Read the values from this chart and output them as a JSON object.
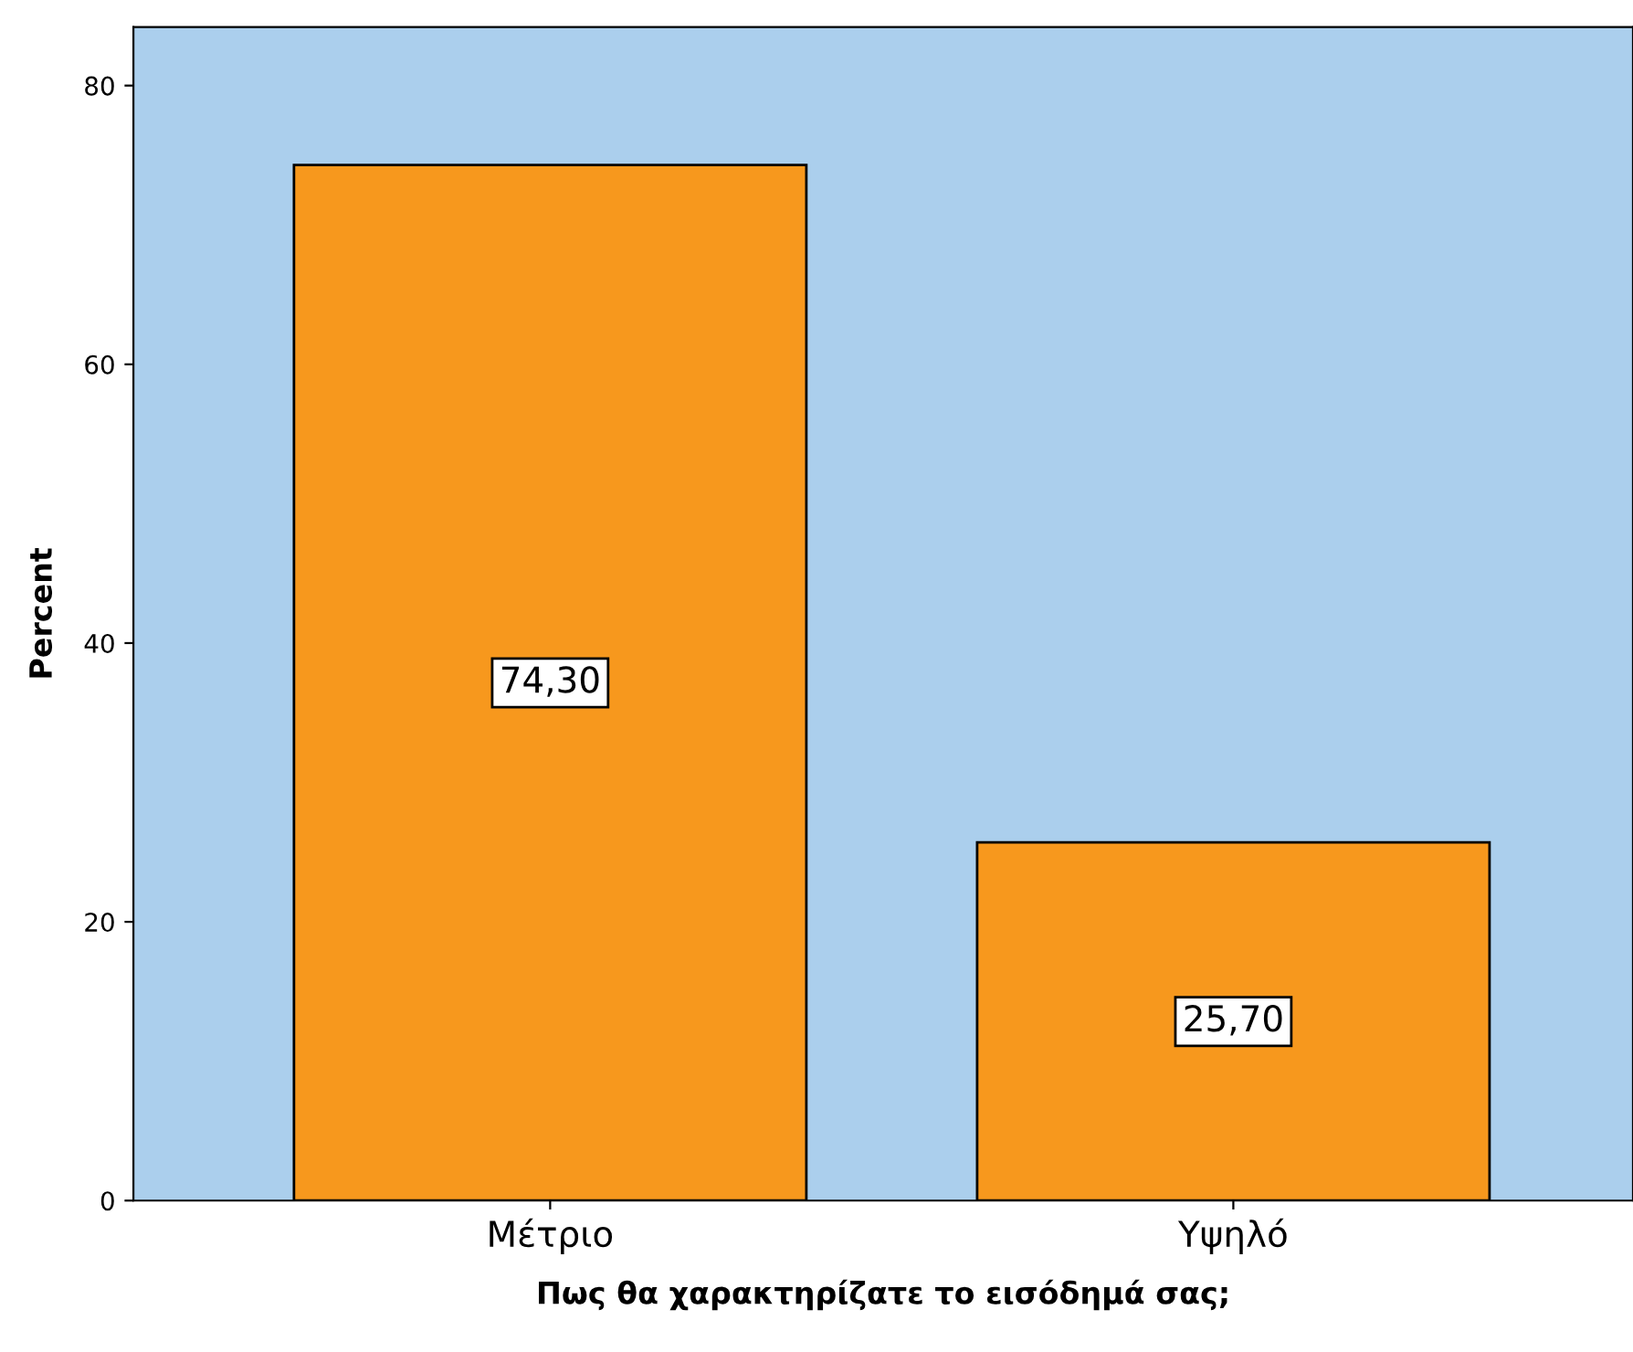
{
  "chart_data": {
    "type": "bar",
    "xlabel": "Πως θα χαρακτηρίζατε το εισόδημά σας;",
    "ylabel": "Percent",
    "categories": [
      "Μέτριο",
      "Υψηλό"
    ],
    "values": [
      74.3,
      25.7
    ],
    "value_labels": [
      "74,30",
      "25,70"
    ],
    "color": "#f7981d",
    "ylim": [
      0,
      84.2
    ],
    "yticks": [
      0,
      20,
      40,
      60,
      80
    ],
    "grid": false,
    "legend": false
  }
}
